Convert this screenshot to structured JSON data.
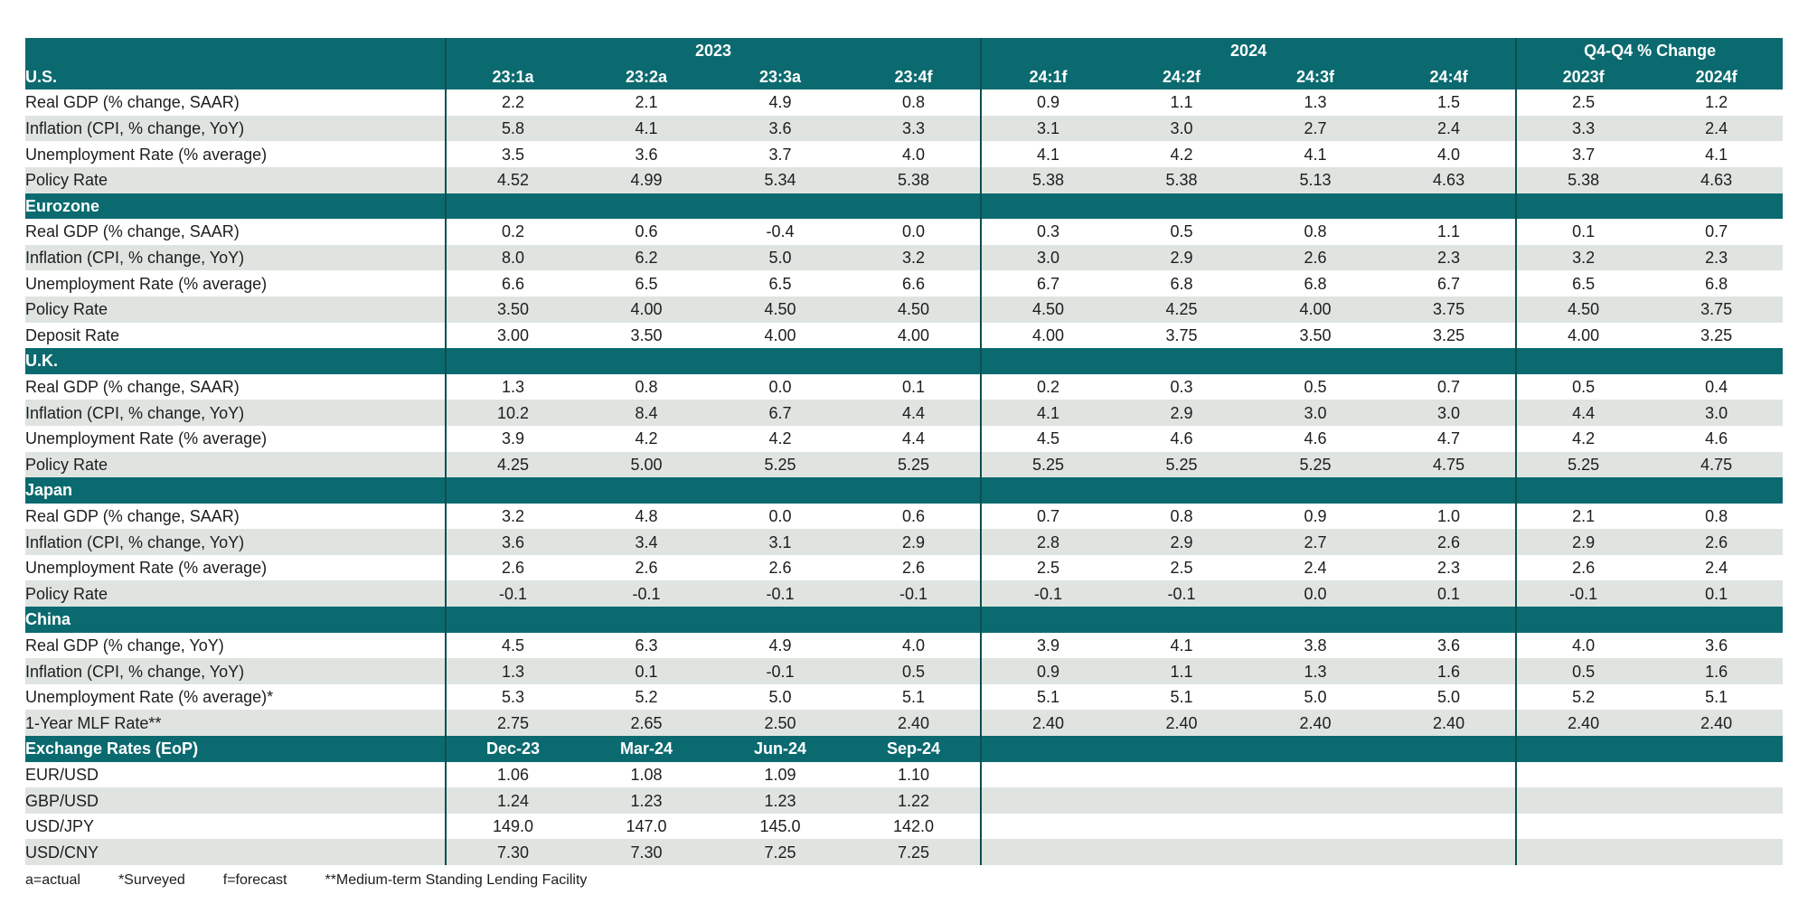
{
  "year_header": {
    "y2023": "2023",
    "y2024": "2024",
    "q4q4": "Q4-Q4 % Change"
  },
  "col_header": {
    "region": "U.S.",
    "cols": [
      "23:1a",
      "23:2a",
      "23:3a",
      "23:4f",
      "24:1f",
      "24:2f",
      "24:3f",
      "24:4f",
      "2023f",
      "2024f"
    ]
  },
  "sections": [
    {
      "title": "U.S.",
      "rows": [
        {
          "label": "Real GDP (% change, SAAR)",
          "values": [
            "2.2",
            "2.1",
            "4.9",
            "0.8",
            "0.9",
            "1.1",
            "1.3",
            "1.5",
            "2.5",
            "1.2"
          ]
        },
        {
          "label": "Inflation (CPI, % change, YoY)",
          "values": [
            "5.8",
            "4.1",
            "3.6",
            "3.3",
            "3.1",
            "3.0",
            "2.7",
            "2.4",
            "3.3",
            "2.4"
          ]
        },
        {
          "label": "Unemployment Rate (% average)",
          "values": [
            "3.5",
            "3.6",
            "3.7",
            "4.0",
            "4.1",
            "4.2",
            "4.1",
            "4.0",
            "3.7",
            "4.1"
          ]
        },
        {
          "label": "Policy Rate",
          "values": [
            "4.52",
            "4.99",
            "5.34",
            "5.38",
            "5.38",
            "5.38",
            "5.13",
            "4.63",
            "5.38",
            "4.63"
          ]
        }
      ]
    },
    {
      "title": "Eurozone",
      "rows": [
        {
          "label": "Real GDP (% change, SAAR)",
          "values": [
            "0.2",
            "0.6",
            "-0.4",
            "0.0",
            "0.3",
            "0.5",
            "0.8",
            "1.1",
            "0.1",
            "0.7"
          ]
        },
        {
          "label": "Inflation (CPI, % change, YoY)",
          "values": [
            "8.0",
            "6.2",
            "5.0",
            "3.2",
            "3.0",
            "2.9",
            "2.6",
            "2.3",
            "3.2",
            "2.3"
          ]
        },
        {
          "label": "Unemployment Rate (% average)",
          "values": [
            "6.6",
            "6.5",
            "6.5",
            "6.6",
            "6.7",
            "6.8",
            "6.8",
            "6.7",
            "6.5",
            "6.8"
          ]
        },
        {
          "label": "Policy Rate",
          "values": [
            "3.50",
            "4.00",
            "4.50",
            "4.50",
            "4.50",
            "4.25",
            "4.00",
            "3.75",
            "4.50",
            "3.75"
          ]
        },
        {
          "label": "Deposit Rate",
          "values": [
            "3.00",
            "3.50",
            "4.00",
            "4.00",
            "4.00",
            "3.75",
            "3.50",
            "3.25",
            "4.00",
            "3.25"
          ]
        }
      ]
    },
    {
      "title": "U.K.",
      "rows": [
        {
          "label": "Real GDP (% change, SAAR)",
          "values": [
            "1.3",
            "0.8",
            "0.0",
            "0.1",
            "0.2",
            "0.3",
            "0.5",
            "0.7",
            "0.5",
            "0.4"
          ]
        },
        {
          "label": "Inflation (CPI, % change, YoY)",
          "values": [
            "10.2",
            "8.4",
            "6.7",
            "4.4",
            "4.1",
            "2.9",
            "3.0",
            "3.0",
            "4.4",
            "3.0"
          ]
        },
        {
          "label": "Unemployment Rate (% average)",
          "values": [
            "3.9",
            "4.2",
            "4.2",
            "4.4",
            "4.5",
            "4.6",
            "4.6",
            "4.7",
            "4.2",
            "4.6"
          ]
        },
        {
          "label": "Policy Rate",
          "values": [
            "4.25",
            "5.00",
            "5.25",
            "5.25",
            "5.25",
            "5.25",
            "5.25",
            "4.75",
            "5.25",
            "4.75"
          ]
        }
      ]
    },
    {
      "title": "Japan",
      "rows": [
        {
          "label": "Real GDP (% change, SAAR)",
          "values": [
            "3.2",
            "4.8",
            "0.0",
            "0.6",
            "0.7",
            "0.8",
            "0.9",
            "1.0",
            "2.1",
            "0.8"
          ]
        },
        {
          "label": "Inflation (CPI, % change, YoY)",
          "values": [
            "3.6",
            "3.4",
            "3.1",
            "2.9",
            "2.8",
            "2.9",
            "2.7",
            "2.6",
            "2.9",
            "2.6"
          ]
        },
        {
          "label": "Unemployment Rate (% average)",
          "values": [
            "2.6",
            "2.6",
            "2.6",
            "2.6",
            "2.5",
            "2.5",
            "2.4",
            "2.3",
            "2.6",
            "2.4"
          ]
        },
        {
          "label": "Policy Rate",
          "values": [
            "-0.1",
            "-0.1",
            "-0.1",
            "-0.1",
            "-0.1",
            "-0.1",
            "0.0",
            "0.1",
            "-0.1",
            "0.1"
          ]
        }
      ]
    },
    {
      "title": "China",
      "rows": [
        {
          "label": "Real GDP (% change, YoY)",
          "values": [
            "4.5",
            "6.3",
            "4.9",
            "4.0",
            "3.9",
            "4.1",
            "3.8",
            "3.6",
            "4.0",
            "3.6"
          ]
        },
        {
          "label": "Inflation (CPI, % change, YoY)",
          "values": [
            "1.3",
            "0.1",
            "-0.1",
            "0.5",
            "0.9",
            "1.1",
            "1.3",
            "1.6",
            "0.5",
            "1.6"
          ]
        },
        {
          "label": "Unemployment Rate (% average)*",
          "values": [
            "5.3",
            "5.2",
            "5.0",
            "5.1",
            "5.1",
            "5.1",
            "5.0",
            "5.0",
            "5.2",
            "5.1"
          ]
        },
        {
          "label": "1-Year MLF Rate**",
          "values": [
            "2.75",
            "2.65",
            "2.50",
            "2.40",
            "2.40",
            "2.40",
            "2.40",
            "2.40",
            "2.40",
            "2.40"
          ]
        }
      ]
    }
  ],
  "fx": {
    "title": "Exchange Rates (EoP)",
    "headers": [
      "Dec-23",
      "Mar-24",
      "Jun-24",
      "Sep-24"
    ],
    "rows": [
      {
        "label": "EUR/USD",
        "values": [
          "1.06",
          "1.08",
          "1.09",
          "1.10"
        ]
      },
      {
        "label": "GBP/USD",
        "values": [
          "1.24",
          "1.23",
          "1.23",
          "1.22"
        ]
      },
      {
        "label": "USD/JPY",
        "values": [
          "149.0",
          "147.0",
          "145.0",
          "142.0"
        ]
      },
      {
        "label": "USD/CNY",
        "values": [
          "7.30",
          "7.30",
          "7.25",
          "7.25"
        ]
      }
    ]
  },
  "notes": [
    "a=actual",
    "*Surveyed",
    "f=forecast",
    "**Medium-term Standing Lending Facility"
  ]
}
